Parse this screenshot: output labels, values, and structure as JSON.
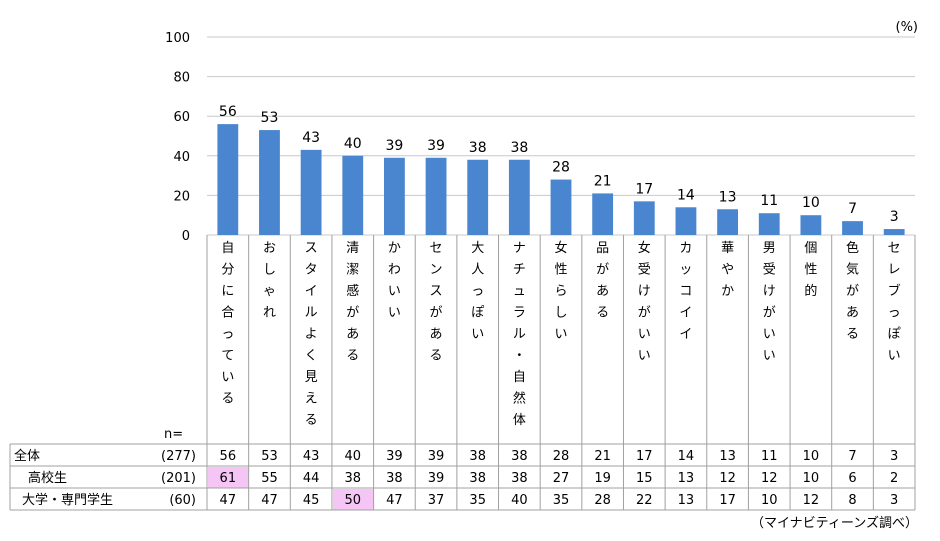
{
  "chart_data": {
    "type": "bar",
    "unit": "(%)",
    "ylim": [
      0,
      100
    ],
    "yticks": [
      0,
      20,
      40,
      60,
      80,
      100
    ],
    "grid": true,
    "categories": [
      "自分に合っている",
      "おしゃれ",
      "スタイルよく見える",
      "清潔感がある",
      "かわいい",
      "センスがある",
      "大人っぽい",
      "ナチュラル・自然体",
      "女性らしい",
      "品がある",
      "女受けがいい",
      "カッコイイ",
      "華やか",
      "男受けがいい",
      "個性的",
      "色気がある",
      "セレブっぽい"
    ],
    "values": [
      56,
      53,
      43,
      40,
      39,
      39,
      38,
      38,
      28,
      21,
      17,
      14,
      13,
      11,
      10,
      7,
      3
    ],
    "bar_color": "#4a86cf",
    "highlight_color": "#f5c6f5",
    "table": {
      "n_label": "n=",
      "rows": [
        {
          "name": "全体",
          "n": "(277)",
          "values": [
            56,
            53,
            43,
            40,
            39,
            39,
            38,
            38,
            28,
            21,
            17,
            14,
            13,
            11,
            10,
            7,
            3
          ],
          "highlight": []
        },
        {
          "name": "高校生",
          "n": "(201)",
          "values": [
            61,
            55,
            44,
            38,
            38,
            39,
            38,
            38,
            27,
            19,
            15,
            13,
            12,
            12,
            10,
            6,
            2
          ],
          "highlight": [
            0
          ]
        },
        {
          "name": "大学・専門学生",
          "n": "(60)",
          "values": [
            47,
            47,
            45,
            50,
            47,
            37,
            35,
            40,
            35,
            28,
            22,
            13,
            17,
            10,
            12,
            8,
            3
          ],
          "highlight": [
            3
          ]
        }
      ]
    },
    "source": "（マイナビティーンズ調べ）"
  }
}
